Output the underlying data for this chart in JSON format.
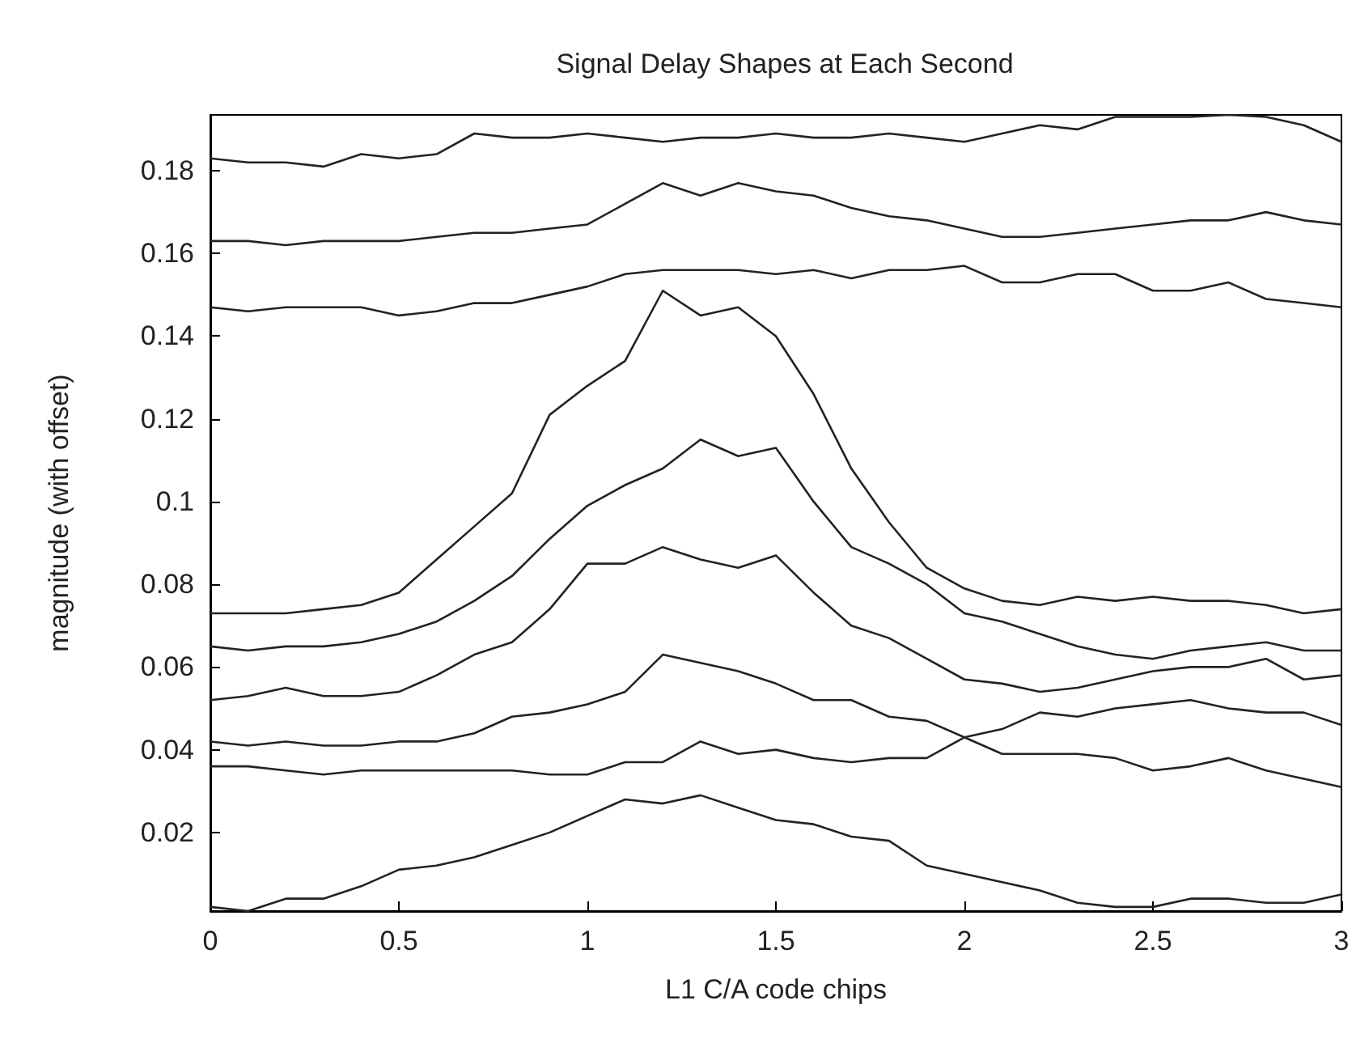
{
  "chart_data": {
    "type": "line",
    "title": "Signal Delay Shapes at Each Second",
    "xlabel": "L1 C/A code chips",
    "ylabel": "magnitude (with offset)",
    "x": [
      0,
      0.1,
      0.2,
      0.3,
      0.4,
      0.5,
      0.6,
      0.7,
      0.8,
      0.9,
      1,
      1.1,
      1.2,
      1.3,
      1.4,
      1.5,
      1.6,
      1.7,
      1.8,
      1.9,
      2,
      2.1,
      2.2,
      2.3,
      2.4,
      2.5,
      2.6,
      2.7,
      2.8,
      2.9,
      3
    ],
    "series": [
      {
        "color": "#222222",
        "values": [
          0.183,
          0.182,
          0.182,
          0.181,
          0.184,
          0.183,
          0.184,
          0.189,
          0.188,
          0.188,
          0.189,
          0.188,
          0.187,
          0.188,
          0.188,
          0.189,
          0.188,
          0.188,
          0.189,
          0.188,
          0.187,
          0.189,
          0.191,
          0.19,
          0.193,
          0.193,
          0.193,
          0.1935,
          0.193,
          0.191,
          0.187
        ]
      },
      {
        "color": "#222222",
        "values": [
          0.163,
          0.163,
          0.162,
          0.163,
          0.163,
          0.163,
          0.164,
          0.165,
          0.165,
          0.166,
          0.167,
          0.172,
          0.177,
          0.174,
          0.177,
          0.175,
          0.174,
          0.171,
          0.169,
          0.168,
          0.166,
          0.164,
          0.164,
          0.165,
          0.166,
          0.167,
          0.168,
          0.168,
          0.17,
          0.168,
          0.167
        ]
      },
      {
        "color": "#222222",
        "values": [
          0.147,
          0.146,
          0.147,
          0.147,
          0.147,
          0.145,
          0.146,
          0.148,
          0.148,
          0.15,
          0.152,
          0.155,
          0.156,
          0.156,
          0.156,
          0.155,
          0.156,
          0.154,
          0.156,
          0.156,
          0.157,
          0.153,
          0.153,
          0.155,
          0.155,
          0.151,
          0.151,
          0.153,
          0.149,
          0.148,
          0.147
        ]
      },
      {
        "color": "#222222",
        "values": [
          0.073,
          0.073,
          0.073,
          0.074,
          0.075,
          0.078,
          0.086,
          0.094,
          0.102,
          0.121,
          0.128,
          0.134,
          0.151,
          0.145,
          0.147,
          0.14,
          0.126,
          0.108,
          0.095,
          0.084,
          0.079,
          0.076,
          0.075,
          0.077,
          0.076,
          0.077,
          0.076,
          0.076,
          0.075,
          0.073,
          0.074
        ]
      },
      {
        "color": "#222222",
        "values": [
          0.065,
          0.064,
          0.065,
          0.065,
          0.066,
          0.068,
          0.071,
          0.076,
          0.082,
          0.091,
          0.099,
          0.104,
          0.108,
          0.115,
          0.111,
          0.113,
          0.1,
          0.089,
          0.085,
          0.08,
          0.073,
          0.071,
          0.068,
          0.065,
          0.063,
          0.062,
          0.064,
          0.065,
          0.066,
          0.064,
          0.064
        ]
      },
      {
        "color": "#222222",
        "values": [
          0.052,
          0.053,
          0.055,
          0.053,
          0.053,
          0.054,
          0.058,
          0.063,
          0.066,
          0.074,
          0.085,
          0.085,
          0.089,
          0.086,
          0.084,
          0.087,
          0.078,
          0.07,
          0.067,
          0.062,
          0.057,
          0.056,
          0.054,
          0.055,
          0.057,
          0.059,
          0.06,
          0.06,
          0.062,
          0.057,
          0.058
        ]
      },
      {
        "color": "#222222",
        "values": [
          0.042,
          0.041,
          0.042,
          0.041,
          0.041,
          0.042,
          0.042,
          0.044,
          0.048,
          0.049,
          0.051,
          0.054,
          0.063,
          0.061,
          0.059,
          0.056,
          0.052,
          0.052,
          0.048,
          0.047,
          0.043,
          0.039,
          0.039,
          0.039,
          0.038,
          0.035,
          0.036,
          0.038,
          0.035,
          0.033,
          0.031
        ]
      },
      {
        "color": "#222222",
        "values": [
          0.036,
          0.036,
          0.035,
          0.034,
          0.035,
          0.035,
          0.035,
          0.035,
          0.035,
          0.034,
          0.034,
          0.037,
          0.037,
          0.042,
          0.039,
          0.04,
          0.038,
          0.037,
          0.038,
          0.038,
          0.043,
          0.045,
          0.049,
          0.048,
          0.05,
          0.051,
          0.052,
          0.05,
          0.049,
          0.049,
          0.046
        ]
      },
      {
        "color": "#222222",
        "values": [
          0.002,
          0.001,
          0.004,
          0.004,
          0.007,
          0.011,
          0.012,
          0.014,
          0.017,
          0.02,
          0.024,
          0.028,
          0.027,
          0.029,
          0.026,
          0.023,
          0.022,
          0.019,
          0.018,
          0.012,
          0.01,
          0.008,
          0.006,
          0.003,
          0.002,
          0.002,
          0.004,
          0.004,
          0.003,
          0.003,
          0.005
        ]
      }
    ],
    "xlim": [
      0,
      3
    ],
    "xticks": [
      0,
      0.5,
      1,
      1.5,
      2,
      2.5,
      3
    ],
    "ylim": [
      0.001,
      0.1935
    ],
    "yticks": [
      0.02,
      0.04,
      0.06,
      0.08,
      0.1,
      0.12,
      0.14,
      0.16,
      0.18
    ],
    "grid": false,
    "marker": "none",
    "line_style": "solid"
  }
}
